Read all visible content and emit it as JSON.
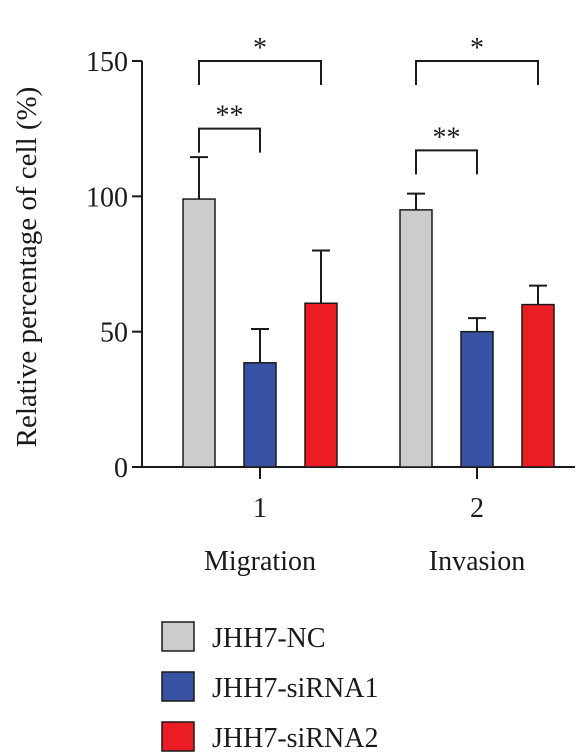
{
  "chart_data": {
    "type": "bar",
    "ylabel": "Relative percentage of cell (%)",
    "ylim": [
      0,
      150
    ],
    "yticks": [
      0,
      50,
      100,
      150
    ],
    "grid": false,
    "legend_position": "bottom-left",
    "groups": [
      {
        "tick": "1",
        "label": "Migration"
      },
      {
        "tick": "2",
        "label": "Invasion"
      }
    ],
    "series": [
      {
        "name": "JHH7-NC",
        "color": "#cccccc",
        "values": [
          99,
          95
        ],
        "errors": [
          15.5,
          6
        ]
      },
      {
        "name": "JHH7-siRNA1",
        "color": "#3853a4",
        "values": [
          38.5,
          50
        ],
        "errors": [
          12.5,
          5
        ]
      },
      {
        "name": "JHH7-siRNA2",
        "color": "#ec1c24",
        "values": [
          60.5,
          60
        ],
        "errors": [
          19.5,
          7
        ]
      }
    ],
    "annotations": [
      {
        "group": 0,
        "from": 0,
        "to": 1,
        "text": "**",
        "level": 125
      },
      {
        "group": 0,
        "from": 0,
        "to": 2,
        "text": "*",
        "level": 150
      },
      {
        "group": 1,
        "from": 0,
        "to": 1,
        "text": "**",
        "level": 117
      },
      {
        "group": 1,
        "from": 0,
        "to": 2,
        "text": "*",
        "level": 150
      }
    ]
  }
}
